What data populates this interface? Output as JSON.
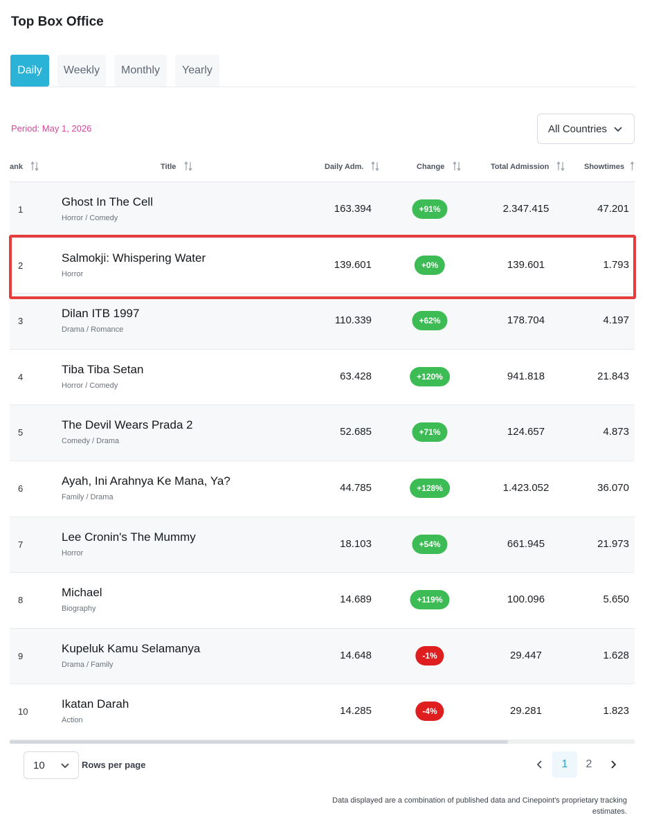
{
  "header": {
    "title": "Top Box Office"
  },
  "tabs": [
    {
      "label": "Daily",
      "active": true
    },
    {
      "label": "Weekly",
      "active": false
    },
    {
      "label": "Monthly",
      "active": false
    },
    {
      "label": "Yearly",
      "active": false
    }
  ],
  "period": "Period: May 1, 2026",
  "country_filter": {
    "value": "All Countries"
  },
  "columns": {
    "rank": "ank",
    "title": "Title",
    "daily": "Daily Adm.",
    "change": "Change",
    "total": "Total Admission",
    "showtimes": "Showtimes"
  },
  "rows": [
    {
      "rank": "1",
      "title": "Ghost In The Cell",
      "genre": "Horror / Comedy",
      "daily": "163.394",
      "change": "+91%",
      "trend": "up",
      "total": "2.347.415",
      "showtimes": "47.201"
    },
    {
      "rank": "2",
      "title": "Salmokji: Whispering Water",
      "genre": "Horror",
      "daily": "139.601",
      "change": "+0%",
      "trend": "up",
      "total": "139.601",
      "showtimes": "1.793"
    },
    {
      "rank": "3",
      "title": "Dilan ITB 1997",
      "genre": "Drama / Romance",
      "daily": "110.339",
      "change": "+62%",
      "trend": "up",
      "total": "178.704",
      "showtimes": "4.197"
    },
    {
      "rank": "4",
      "title": "Tiba Tiba Setan",
      "genre": "Horror / Comedy",
      "daily": "63.428",
      "change": "+120%",
      "trend": "up",
      "total": "941.818",
      "showtimes": "21.843"
    },
    {
      "rank": "5",
      "title": "The Devil Wears Prada 2",
      "genre": "Comedy / Drama",
      "daily": "52.685",
      "change": "+71%",
      "trend": "up",
      "total": "124.657",
      "showtimes": "4.873"
    },
    {
      "rank": "6",
      "title": "Ayah, Ini Arahnya Ke Mana, Ya?",
      "genre": "Family / Drama",
      "daily": "44.785",
      "change": "+128%",
      "trend": "up",
      "total": "1.423.052",
      "showtimes": "36.070"
    },
    {
      "rank": "7",
      "title": "Lee Cronin's The Mummy",
      "genre": "Horror",
      "daily": "18.103",
      "change": "+54%",
      "trend": "up",
      "total": "661.945",
      "showtimes": "21.973"
    },
    {
      "rank": "8",
      "title": "Michael",
      "genre": "Biography",
      "daily": "14.689",
      "change": "+119%",
      "trend": "up",
      "total": "100.096",
      "showtimes": "5.650"
    },
    {
      "rank": "9",
      "title": "Kupeluk Kamu Selamanya",
      "genre": "Drama / Family",
      "daily": "14.648",
      "change": "-1%",
      "trend": "down",
      "total": "29.447",
      "showtimes": "1.628"
    },
    {
      "rank": "10",
      "title": "Ikatan Darah",
      "genre": "Action",
      "daily": "14.285",
      "change": "-4%",
      "trend": "down",
      "total": "29.281",
      "showtimes": "1.823"
    }
  ],
  "pagination": {
    "rows_per_page_value": "10",
    "rows_per_page_label": "Rows per page",
    "pages": [
      "1",
      "2"
    ],
    "current_page": "1"
  },
  "footnote": "Data displayed are a combination of published data and Cinepoint's proprietary tracking estimates.",
  "colors": {
    "accent": "#2ab3d6",
    "period": "#d7479b",
    "up": "#3dbb54",
    "down": "#df1f1f",
    "highlight": "#e53d3d"
  },
  "icons": {
    "sort": "sort-arrows-icon",
    "dropdown": "chevron-down-icon",
    "prev": "chevron-left-icon",
    "next": "chevron-right-icon"
  }
}
